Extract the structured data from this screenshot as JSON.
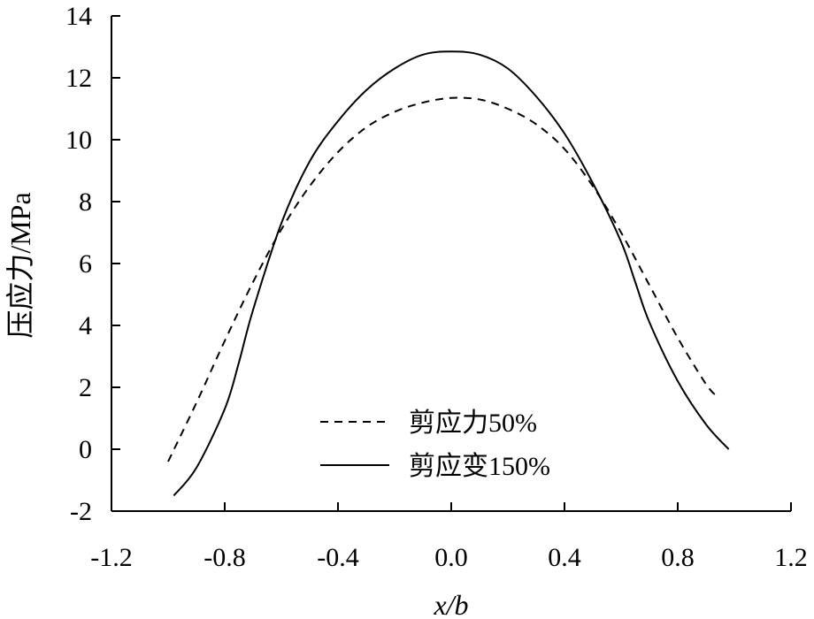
{
  "chart_data": {
    "type": "line",
    "xlabel": "x/b",
    "ylabel": "压应力/MPa",
    "xlim": [
      -1.2,
      1.2
    ],
    "ylim": [
      -2,
      14
    ],
    "x_ticks": [
      "-1.2",
      "-0.8",
      "-0.4",
      "0.0",
      "0.4",
      "0.8",
      "1.2"
    ],
    "y_ticks": [
      "-2",
      "0",
      "2",
      "4",
      "6",
      "8",
      "10",
      "12",
      "14"
    ],
    "grid": false,
    "legend_position": "bottom-center",
    "series": [
      {
        "name": "剪应力50%",
        "style": "dashed",
        "color": "#000000",
        "x": [
          -1.0,
          -0.9,
          -0.8,
          -0.7,
          -0.6,
          -0.5,
          -0.4,
          -0.3,
          -0.2,
          -0.1,
          0.0,
          0.1,
          0.2,
          0.3,
          0.4,
          0.5,
          0.6,
          0.7,
          0.8,
          0.9,
          0.94
        ],
        "y": [
          -0.4,
          1.5,
          3.5,
          5.4,
          7.1,
          8.5,
          9.6,
          10.4,
          10.9,
          11.2,
          11.35,
          11.3,
          11.0,
          10.5,
          9.7,
          8.5,
          7.0,
          5.3,
          3.6,
          2.1,
          1.7
        ]
      },
      {
        "name": "剪应变150%",
        "style": "solid",
        "color": "#000000",
        "x": [
          -0.98,
          -0.9,
          -0.8,
          -0.75,
          -0.7,
          -0.6,
          -0.5,
          -0.4,
          -0.3,
          -0.2,
          -0.1,
          0.0,
          0.1,
          0.2,
          0.3,
          0.4,
          0.5,
          0.6,
          0.65,
          0.7,
          0.8,
          0.9,
          0.98
        ],
        "y": [
          -1.5,
          -0.6,
          1.3,
          2.8,
          4.5,
          7.3,
          9.3,
          10.6,
          11.6,
          12.3,
          12.75,
          12.85,
          12.75,
          12.3,
          11.4,
          10.2,
          8.6,
          6.7,
          5.4,
          4.1,
          2.2,
          0.8,
          0.0
        ]
      }
    ]
  }
}
